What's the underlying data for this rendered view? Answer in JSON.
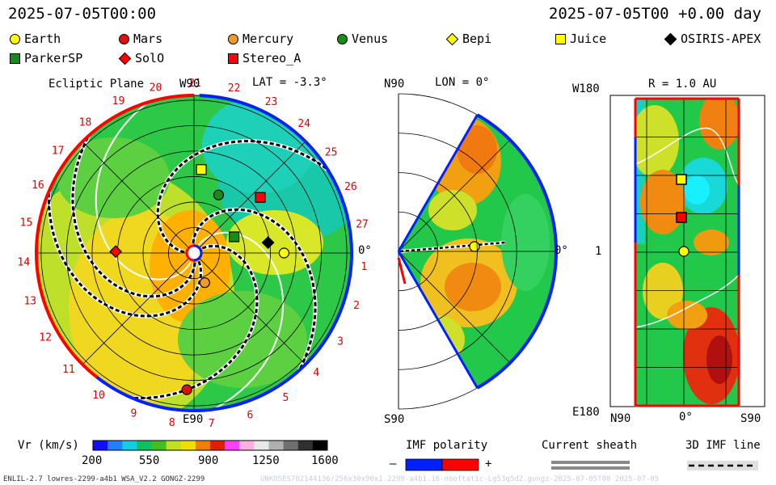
{
  "header": {
    "time_left": "2025-07-05T00:00",
    "time_right": "2025-07-05T00 +0.00 day"
  },
  "legend": [
    {
      "name": "Earth",
      "color": "#ffff00",
      "shape": "circle"
    },
    {
      "name": "Mars",
      "color": "#e01010",
      "shape": "circle"
    },
    {
      "name": "Mercury",
      "color": "#f09a2a",
      "shape": "circle"
    },
    {
      "name": "Venus",
      "color": "#1a8a1a",
      "shape": "circle"
    },
    {
      "name": "Bepi",
      "color": "#ffff00",
      "shape": "diamond"
    },
    {
      "name": "Juice",
      "color": "#ffff00",
      "shape": "square"
    },
    {
      "name": "OSIRIS-APEX",
      "color": "#000000",
      "shape": "diamond"
    },
    {
      "name": "ParkerSP",
      "color": "#1a8a1a",
      "shape": "square"
    },
    {
      "name": "SolO",
      "color": "#ff0000",
      "shape": "diamond"
    },
    {
      "name": "Stereo_A",
      "color": "#ff0000",
      "shape": "square"
    }
  ],
  "chart_data": [
    {
      "type": "heatmap",
      "title": "Ecliptic Plane",
      "lat_label": "LAT = -3.3°",
      "top_label": "W90",
      "bottom_label": "E90",
      "right_label": "0°",
      "carrington_rim_labels": [
        "1",
        "2",
        "3",
        "4",
        "5",
        "6",
        "7",
        "8",
        "9",
        "10",
        "11",
        "12",
        "13",
        "14",
        "15",
        "16",
        "17",
        "18",
        "19",
        "20",
        "21",
        "22",
        "23",
        "24",
        "25",
        "26",
        "27"
      ],
      "bodies": [
        {
          "name": "Earth",
          "angle_deg": 0,
          "r_au": 1.0
        },
        {
          "name": "Mercury",
          "angle_deg": -70,
          "r_au": 0.35
        },
        {
          "name": "Venus",
          "angle_deg": 67,
          "r_au": 0.7
        },
        {
          "name": "Mars",
          "angle_deg": -93,
          "r_au": 1.52
        },
        {
          "name": "Juice",
          "angle_deg": 85,
          "r_au": 0.93
        },
        {
          "name": "Stereo_A",
          "angle_deg": 40,
          "r_au": 0.96
        },
        {
          "name": "ParkerSP",
          "angle_deg": 22,
          "r_au": 0.48
        },
        {
          "name": "OSIRIS-APEX",
          "angle_deg": 8,
          "r_au": 0.83
        },
        {
          "name": "SolO",
          "angle_deg": 179,
          "r_au": 0.87
        }
      ]
    },
    {
      "type": "heatmap",
      "title": "LON = 0°",
      "top_label": "N90",
      "bottom_label": "S90",
      "right_label": "0°"
    },
    {
      "type": "heatmap",
      "title": "R = 1.0 AU",
      "y_top_label": "W180",
      "y_mid_label": "1",
      "y_bottom_label": "E180",
      "x_labels": [
        "N90",
        "0°",
        "S90"
      ]
    }
  ],
  "colorbar": {
    "label": "Vr (km/s)",
    "ticks": [
      "200",
      "550",
      "900",
      "1250",
      "1600"
    ],
    "min": 200,
    "max": 1600
  },
  "keys": {
    "imf_polarity": "IMF polarity",
    "minus": "–",
    "plus": "+",
    "current_sheath": "Current sheath",
    "imf_line": "3D IMF line"
  },
  "footer": {
    "model_info": "ENLIL-2.7 lowres-2299-a4b1 WSA_V2.2 GONGZ-2299",
    "run_info": "UNKOSES702144136/256x30x90x1.2299-a4b1.16-nooftatic-Lg53q5d2.gongz-2025-07-05T00   2025-07-05"
  }
}
